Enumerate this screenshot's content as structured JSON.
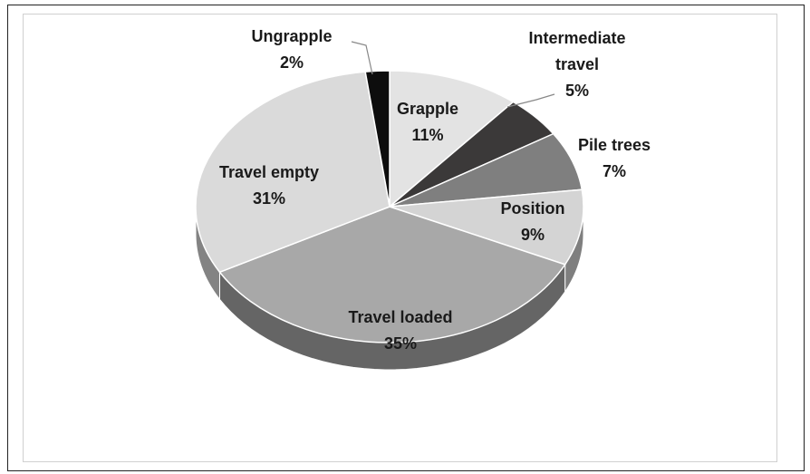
{
  "chart_data": {
    "type": "pie",
    "categories": [
      "Grapple",
      "Intermediate travel",
      "Pile trees",
      "Position",
      "Travel loaded",
      "Travel empty",
      "Ungrapple"
    ],
    "values": [
      11,
      5,
      7,
      9,
      35,
      31,
      2
    ],
    "value_labels": [
      "11%",
      "5%",
      "7%",
      "9%",
      "35%",
      "31%",
      "2%"
    ],
    "colors": [
      "#e3e3e3",
      "#3b3939",
      "#7f7f7f",
      "#d4d4d4",
      "#a8a8a8",
      "#dadada",
      "#0d0d0d"
    ]
  }
}
